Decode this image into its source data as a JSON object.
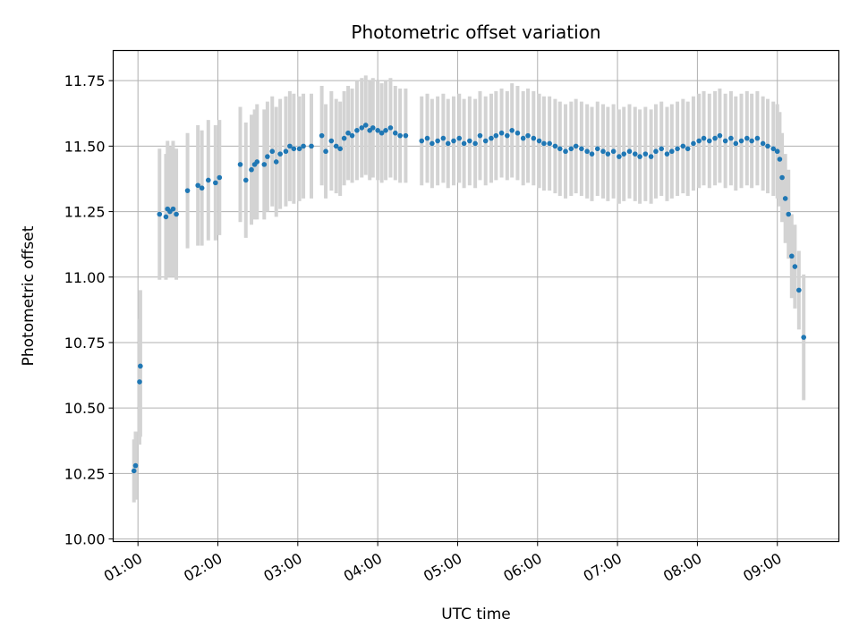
{
  "chart_data": {
    "type": "scatter",
    "title": "Photometric offset variation",
    "xlabel": "UTC time",
    "ylabel": "Photometric offset",
    "x_unit": "hours UTC",
    "xlim": [
      0.69,
      9.77
    ],
    "ylim": [
      9.99,
      11.865
    ],
    "x_tick_labels": [
      "01:00",
      "02:00",
      "03:00",
      "04:00",
      "05:00",
      "06:00",
      "07:00",
      "08:00",
      "09:00"
    ],
    "y_ticks": [
      10.0,
      10.25,
      10.5,
      10.75,
      11.0,
      11.25,
      11.5,
      11.75
    ],
    "y_tick_labels": [
      "10.00",
      "10.25",
      "10.50",
      "10.75",
      "11.00",
      "11.25",
      "11.50",
      "11.75"
    ],
    "grid": true,
    "legend": "none",
    "colors": {
      "points": "#1f77b4",
      "error_bars": "#d3d3d3",
      "grid": "#b0b0b0",
      "axes": "#000000"
    },
    "series": [
      {
        "x": [
          0.95,
          0.97,
          1.02,
          1.03,
          1.27,
          1.35,
          1.37,
          1.4,
          1.44,
          1.48,
          1.62,
          1.75,
          1.8,
          1.88,
          1.97,
          2.02,
          2.28,
          2.35,
          2.42,
          2.46,
          2.49,
          2.58,
          2.62,
          2.68,
          2.73,
          2.78,
          2.85,
          2.9,
          2.95,
          3.02,
          3.07,
          3.17,
          3.3,
          3.35,
          3.42,
          3.48,
          3.53,
          3.58,
          3.63,
          3.68,
          3.74,
          3.8,
          3.85,
          3.9,
          3.94,
          4.0,
          4.05,
          4.1,
          4.16,
          4.22,
          4.28,
          4.35,
          4.55,
          4.62,
          4.68,
          4.75,
          4.82,
          4.88,
          4.95,
          5.02,
          5.08,
          5.15,
          5.22,
          5.28,
          5.35,
          5.42,
          5.48,
          5.55,
          5.62,
          5.68,
          5.75,
          5.82,
          5.88,
          5.95,
          6.02,
          6.08,
          6.15,
          6.22,
          6.28,
          6.35,
          6.42,
          6.48,
          6.55,
          6.62,
          6.68,
          6.75,
          6.82,
          6.88,
          6.95,
          7.02,
          7.08,
          7.15,
          7.22,
          7.28,
          7.35,
          7.42,
          7.48,
          7.55,
          7.62,
          7.68,
          7.75,
          7.82,
          7.88,
          7.95,
          8.02,
          8.08,
          8.15,
          8.22,
          8.28,
          8.35,
          8.42,
          8.48,
          8.55,
          8.62,
          8.68,
          8.75,
          8.82,
          8.88,
          8.95,
          9.0,
          9.03,
          9.06,
          9.1,
          9.14,
          9.18,
          9.22,
          9.27,
          9.33
        ],
        "y": [
          10.26,
          10.28,
          10.6,
          10.66,
          11.24,
          11.23,
          11.26,
          11.25,
          11.26,
          11.24,
          11.33,
          11.35,
          11.34,
          11.37,
          11.36,
          11.38,
          11.43,
          11.37,
          11.41,
          11.43,
          11.44,
          11.43,
          11.46,
          11.48,
          11.44,
          11.47,
          11.48,
          11.5,
          11.49,
          11.49,
          11.5,
          11.5,
          11.54,
          11.48,
          11.52,
          11.5,
          11.49,
          11.53,
          11.55,
          11.54,
          11.56,
          11.57,
          11.58,
          11.56,
          11.57,
          11.56,
          11.55,
          11.56,
          11.57,
          11.55,
          11.54,
          11.54,
          11.52,
          11.53,
          11.51,
          11.52,
          11.53,
          11.51,
          11.52,
          11.53,
          11.51,
          11.52,
          11.51,
          11.54,
          11.52,
          11.53,
          11.54,
          11.55,
          11.54,
          11.56,
          11.55,
          11.53,
          11.54,
          11.53,
          11.52,
          11.51,
          11.51,
          11.5,
          11.49,
          11.48,
          11.49,
          11.5,
          11.49,
          11.48,
          11.47,
          11.49,
          11.48,
          11.47,
          11.48,
          11.46,
          11.47,
          11.48,
          11.47,
          11.46,
          11.47,
          11.46,
          11.48,
          11.49,
          11.47,
          11.48,
          11.49,
          11.5,
          11.49,
          11.51,
          11.52,
          11.53,
          11.52,
          11.53,
          11.54,
          11.52,
          11.53,
          11.51,
          11.52,
          11.53,
          11.52,
          11.53,
          11.51,
          11.5,
          11.49,
          11.48,
          11.45,
          11.38,
          11.3,
          11.24,
          11.08,
          11.04,
          10.95,
          10.77
        ],
        "error_low": [
          10.14,
          10.15,
          10.36,
          10.39,
          10.99,
          10.99,
          11.0,
          11.0,
          11.0,
          10.99,
          11.11,
          11.12,
          11.12,
          11.14,
          11.14,
          11.16,
          11.21,
          11.15,
          11.2,
          11.22,
          11.22,
          11.22,
          11.25,
          11.27,
          11.23,
          11.26,
          11.27,
          11.29,
          11.28,
          11.29,
          11.3,
          11.3,
          11.35,
          11.3,
          11.33,
          11.32,
          11.31,
          11.35,
          11.37,
          11.36,
          11.37,
          11.38,
          11.39,
          11.37,
          11.38,
          11.37,
          11.36,
          11.37,
          11.38,
          11.37,
          11.36,
          11.36,
          11.35,
          11.36,
          11.34,
          11.35,
          11.36,
          11.34,
          11.35,
          11.36,
          11.34,
          11.35,
          11.34,
          11.37,
          11.35,
          11.36,
          11.37,
          11.38,
          11.37,
          11.38,
          11.37,
          11.35,
          11.36,
          11.35,
          11.34,
          11.33,
          11.33,
          11.32,
          11.31,
          11.3,
          11.31,
          11.32,
          11.31,
          11.3,
          11.29,
          11.31,
          11.3,
          11.29,
          11.3,
          11.28,
          11.29,
          11.3,
          11.29,
          11.28,
          11.29,
          11.28,
          11.3,
          11.31,
          11.29,
          11.3,
          11.31,
          11.32,
          11.31,
          11.33,
          11.34,
          11.35,
          11.34,
          11.35,
          11.36,
          11.34,
          11.35,
          11.33,
          11.34,
          11.35,
          11.34,
          11.35,
          11.33,
          11.32,
          11.31,
          11.3,
          11.27,
          11.21,
          11.13,
          11.07,
          10.92,
          10.88,
          10.8,
          10.53
        ],
        "error_high": [
          10.38,
          10.41,
          10.84,
          10.95,
          11.49,
          11.47,
          11.52,
          11.5,
          11.52,
          11.49,
          11.55,
          11.58,
          11.56,
          11.6,
          11.58,
          11.6,
          11.65,
          11.59,
          11.62,
          11.64,
          11.66,
          11.64,
          11.67,
          11.69,
          11.65,
          11.68,
          11.69,
          11.71,
          11.7,
          11.69,
          11.7,
          11.7,
          11.73,
          11.66,
          11.71,
          11.68,
          11.67,
          11.71,
          11.73,
          11.72,
          11.75,
          11.76,
          11.77,
          11.75,
          11.76,
          11.75,
          11.74,
          11.75,
          11.76,
          11.73,
          11.72,
          11.72,
          11.69,
          11.7,
          11.68,
          11.69,
          11.7,
          11.68,
          11.69,
          11.7,
          11.68,
          11.69,
          11.68,
          11.71,
          11.69,
          11.7,
          11.71,
          11.72,
          11.71,
          11.74,
          11.73,
          11.71,
          11.72,
          11.71,
          11.7,
          11.69,
          11.69,
          11.68,
          11.67,
          11.66,
          11.67,
          11.68,
          11.67,
          11.66,
          11.65,
          11.67,
          11.66,
          11.65,
          11.66,
          11.64,
          11.65,
          11.66,
          11.65,
          11.64,
          11.65,
          11.64,
          11.66,
          11.67,
          11.65,
          11.66,
          11.67,
          11.68,
          11.67,
          11.69,
          11.7,
          11.71,
          11.7,
          11.71,
          11.72,
          11.7,
          11.71,
          11.69,
          11.7,
          11.71,
          11.7,
          11.71,
          11.69,
          11.68,
          11.67,
          11.66,
          11.63,
          11.55,
          11.47,
          11.41,
          11.24,
          11.2,
          11.1,
          11.01
        ]
      }
    ]
  }
}
